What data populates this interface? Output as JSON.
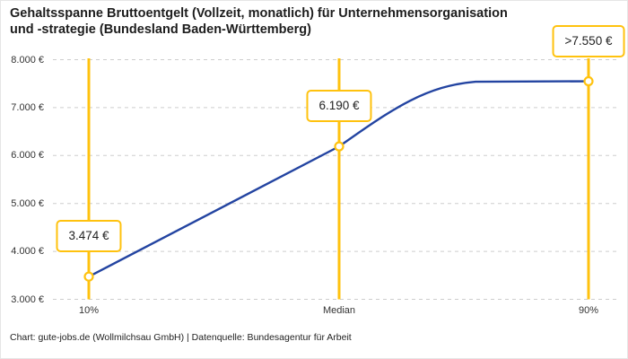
{
  "title": {
    "lines": [
      "Gehaltsspanne Bruttoentgelt (Vollzeit, monatlich) für Unternehmensorganisation",
      "und -strategie (Bundesland Baden-Württemberg)"
    ]
  },
  "footer": {
    "text": "Chart: gute-jobs.de (Wollmilchsau GmbH) | Datenquelle: Bundesagentur für Arbeit"
  },
  "colors": {
    "accent_yellow": "#FFC20E",
    "line_blue": "#2344A1",
    "grid": "#CDCDCD",
    "title_text": "#1D1D1D",
    "tick_text": "#333333"
  },
  "chart_data": {
    "type": "line",
    "title": "Gehaltsspanne Bruttoentgelt (Vollzeit, monatlich) für Unternehmensorganisation und -strategie (Bundesland Baden-Württemberg)",
    "categories": [
      "10%",
      "Median",
      "90%"
    ],
    "values": [
      3474,
      6190,
      7550
    ],
    "point_labels": [
      "3.474 €",
      "6.190 €",
      ">7.550 €"
    ],
    "ylim": [
      3000,
      8000
    ],
    "y_ticks": [
      8000,
      7000,
      6000,
      5000,
      4000,
      3000
    ],
    "y_tick_labels": [
      "8.000 €",
      "7.000 €",
      "6.000 €",
      "5.000 €",
      "4.000 €",
      "3.000 €"
    ],
    "xlabel": "",
    "ylabel": "",
    "grid": "horizontal-dashed",
    "legend": "none"
  }
}
